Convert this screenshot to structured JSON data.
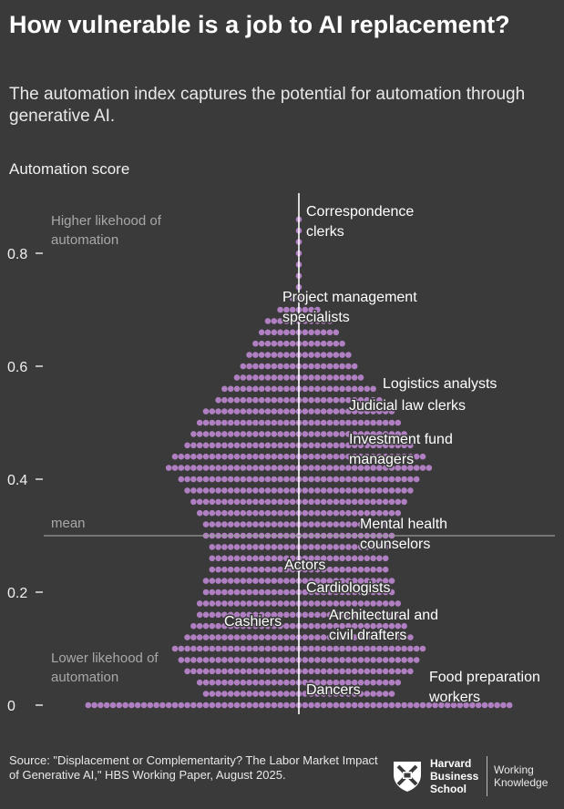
{
  "title": "How vulnerable is a job to AI replacement?",
  "subtitle": "The automation index captures the potential for automation through generative AI.",
  "footer": {
    "source": "Source: \"Displacement or Complementarity? The Labor Market Impact of Generative AI,\" HBS Working Paper, August 2025.",
    "logo_line1": "Harvard",
    "logo_line2": "Business",
    "logo_line3": "School",
    "wk_line1": "Working",
    "wk_line2": "Knowledge"
  },
  "colors": {
    "background": "#3a3a3a",
    "dot": "#b07fc2",
    "line": "#ffffff",
    "mean_line": "#9a9a9a",
    "muted_text": "#a8a8a8"
  },
  "chart_data": {
    "type": "scatter",
    "subtype": "beeswarm",
    "ylabel": "Automation score",
    "ylim": [
      0,
      0.88
    ],
    "yticks": [
      {
        "value": 0,
        "label": "0"
      },
      {
        "value": 0.2,
        "label": "0.2"
      },
      {
        "value": 0.4,
        "label": "0.4"
      },
      {
        "value": 0.6,
        "label": "0.6"
      },
      {
        "value": 0.8,
        "label": "0.8"
      }
    ],
    "mean": 0.3,
    "mean_label": "mean",
    "top_label": [
      "Higher likehood of",
      "automation"
    ],
    "bottom_label": [
      "Lower likehood of",
      "automation"
    ],
    "distribution": [
      {
        "y": 0.86,
        "count": 1
      },
      {
        "y": 0.84,
        "count": 1
      },
      {
        "y": 0.82,
        "count": 1
      },
      {
        "y": 0.8,
        "count": 1
      },
      {
        "y": 0.78,
        "count": 1
      },
      {
        "y": 0.76,
        "count": 1
      },
      {
        "y": 0.74,
        "count": 1
      },
      {
        "y": 0.72,
        "count": 3
      },
      {
        "y": 0.7,
        "count": 7
      },
      {
        "y": 0.68,
        "count": 11
      },
      {
        "y": 0.66,
        "count": 13
      },
      {
        "y": 0.64,
        "count": 15
      },
      {
        "y": 0.62,
        "count": 17
      },
      {
        "y": 0.6,
        "count": 19
      },
      {
        "y": 0.58,
        "count": 21
      },
      {
        "y": 0.56,
        "count": 25
      },
      {
        "y": 0.54,
        "count": 27
      },
      {
        "y": 0.52,
        "count": 31
      },
      {
        "y": 0.5,
        "count": 33
      },
      {
        "y": 0.48,
        "count": 35
      },
      {
        "y": 0.46,
        "count": 37
      },
      {
        "y": 0.44,
        "count": 41
      },
      {
        "y": 0.42,
        "count": 43
      },
      {
        "y": 0.4,
        "count": 39
      },
      {
        "y": 0.38,
        "count": 37
      },
      {
        "y": 0.36,
        "count": 35
      },
      {
        "y": 0.34,
        "count": 33
      },
      {
        "y": 0.32,
        "count": 31
      },
      {
        "y": 0.3,
        "count": 31
      },
      {
        "y": 0.28,
        "count": 29
      },
      {
        "y": 0.26,
        "count": 29
      },
      {
        "y": 0.24,
        "count": 29
      },
      {
        "y": 0.22,
        "count": 31
      },
      {
        "y": 0.2,
        "count": 31
      },
      {
        "y": 0.18,
        "count": 33
      },
      {
        "y": 0.16,
        "count": 33
      },
      {
        "y": 0.14,
        "count": 35
      },
      {
        "y": 0.12,
        "count": 37
      },
      {
        "y": 0.1,
        "count": 41
      },
      {
        "y": 0.08,
        "count": 39
      },
      {
        "y": 0.06,
        "count": 37
      },
      {
        "y": 0.04,
        "count": 33
      },
      {
        "y": 0.02,
        "count": 31
      },
      {
        "y": 0,
        "count": 69
      }
    ],
    "annotations": [
      {
        "lines": [
          "Correspondence",
          "clerks"
        ],
        "y": 0.86,
        "side": "right"
      },
      {
        "lines": [
          "Project management",
          "specialists"
        ],
        "y": 0.71,
        "side": "center"
      },
      {
        "lines": [
          "Logistics analysts"
        ],
        "y": 0.57,
        "side": "right"
      },
      {
        "lines": [
          "Judicial law clerks"
        ],
        "y": 0.53,
        "side": "right"
      },
      {
        "lines": [
          "Investment fund",
          "managers"
        ],
        "y": 0.47,
        "side": "right"
      },
      {
        "lines": [
          "Mental health",
          "counselors"
        ],
        "y": 0.31,
        "side": "right"
      },
      {
        "lines": [
          "Actors"
        ],
        "y": 0.25,
        "side": "center"
      },
      {
        "lines": [
          "Cardiologists"
        ],
        "y": 0.21,
        "side": "right"
      },
      {
        "lines": [
          "Architectural and",
          "civil drafters"
        ],
        "y": 0.16,
        "side": "right"
      },
      {
        "lines": [
          "Cashiers"
        ],
        "y": 0.15,
        "side": "left"
      },
      {
        "lines": [
          "Dancers"
        ],
        "y": 0.03,
        "side": "right"
      },
      {
        "lines": [
          "Food preparation",
          "workers"
        ],
        "y": 0.05,
        "side": "far-right"
      }
    ]
  }
}
